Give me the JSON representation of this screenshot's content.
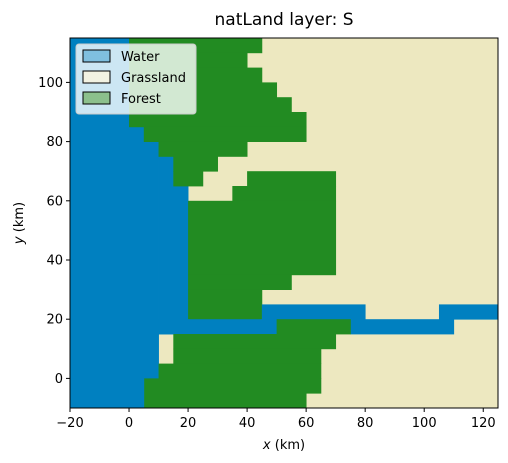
{
  "chart_data": {
    "type": "heatmap",
    "title": "natLand layer: S",
    "xlabel_var": "x",
    "xlabel_unit": " (km)",
    "ylabel_var": "y",
    "ylabel_unit": " (km)",
    "xlim": [
      -20,
      125
    ],
    "ylim": [
      -10,
      115
    ],
    "xticks": [
      -20,
      0,
      20,
      40,
      60,
      80,
      100,
      120
    ],
    "yticks": [
      0,
      20,
      40,
      60,
      80,
      100
    ],
    "legend_position": "upper-left",
    "legend": [
      {
        "label": "Water",
        "color": "#7fbfdf"
      },
      {
        "label": "Grassland",
        "color": "#f2f2e2"
      },
      {
        "label": "Forest",
        "color": "#8cc08c"
      }
    ],
    "classes": {
      "water": "#0080c0",
      "grass": "#ede8c0",
      "forest": "#228b22"
    },
    "cell_size_km": 5,
    "background_class": "grass",
    "regions": [
      {
        "class": "water",
        "x": [
          -20,
          0
        ],
        "y": [
          -10,
          115
        ]
      },
      {
        "class": "water",
        "x": [
          0,
          10
        ],
        "y": [
          -10,
          115
        ]
      },
      {
        "class": "water",
        "x": [
          10,
          20
        ],
        "y": [
          15,
          115
        ]
      },
      {
        "class": "forest",
        "x": [
          0,
          45
        ],
        "y": [
          110,
          115
        ]
      },
      {
        "class": "forest",
        "x": [
          0,
          40
        ],
        "y": [
          105,
          110
        ]
      },
      {
        "class": "forest",
        "x": [
          0,
          45
        ],
        "y": [
          100,
          105
        ]
      },
      {
        "class": "forest",
        "x": [
          0,
          50
        ],
        "y": [
          95,
          100
        ]
      },
      {
        "class": "forest",
        "x": [
          0,
          55
        ],
        "y": [
          90,
          95
        ]
      },
      {
        "class": "forest",
        "x": [
          0,
          60
        ],
        "y": [
          85,
          90
        ]
      },
      {
        "class": "forest",
        "x": [
          5,
          60
        ],
        "y": [
          80,
          85
        ]
      },
      {
        "class": "forest",
        "x": [
          10,
          40
        ],
        "y": [
          75,
          80
        ]
      },
      {
        "class": "forest",
        "x": [
          15,
          30
        ],
        "y": [
          70,
          75
        ]
      },
      {
        "class": "forest",
        "x": [
          15,
          25
        ],
        "y": [
          65,
          70
        ]
      },
      {
        "class": "forest",
        "x": [
          40,
          70
        ],
        "y": [
          65,
          70
        ]
      },
      {
        "class": "forest",
        "x": [
          35,
          70
        ],
        "y": [
          60,
          65
        ]
      },
      {
        "class": "forest",
        "x": [
          20,
          70
        ],
        "y": [
          35,
          60
        ]
      },
      {
        "class": "forest",
        "x": [
          20,
          55
        ],
        "y": [
          30,
          35
        ]
      },
      {
        "class": "forest",
        "x": [
          20,
          45
        ],
        "y": [
          20,
          30
        ]
      },
      {
        "class": "water",
        "x": [
          45,
          80
        ],
        "y": [
          20,
          25
        ]
      },
      {
        "class": "water",
        "x": [
          105,
          125
        ],
        "y": [
          20,
          25
        ]
      },
      {
        "class": "water",
        "x": [
          10,
          50
        ],
        "y": [
          15,
          20
        ]
      },
      {
        "class": "water",
        "x": [
          75,
          110
        ],
        "y": [
          15,
          20
        ]
      },
      {
        "class": "forest",
        "x": [
          50,
          75
        ],
        "y": [
          15,
          20
        ]
      },
      {
        "class": "forest",
        "x": [
          15,
          70
        ],
        "y": [
          10,
          15
        ]
      },
      {
        "class": "forest",
        "x": [
          15,
          65
        ],
        "y": [
          5,
          10
        ]
      },
      {
        "class": "forest",
        "x": [
          10,
          65
        ],
        "y": [
          0,
          5
        ]
      },
      {
        "class": "forest",
        "x": [
          5,
          65
        ],
        "y": [
          -5,
          0
        ]
      },
      {
        "class": "forest",
        "x": [
          5,
          60
        ],
        "y": [
          -10,
          -5
        ]
      },
      {
        "class": "water",
        "x": [
          0,
          5
        ],
        "y": [
          -10,
          0
        ]
      }
    ]
  }
}
